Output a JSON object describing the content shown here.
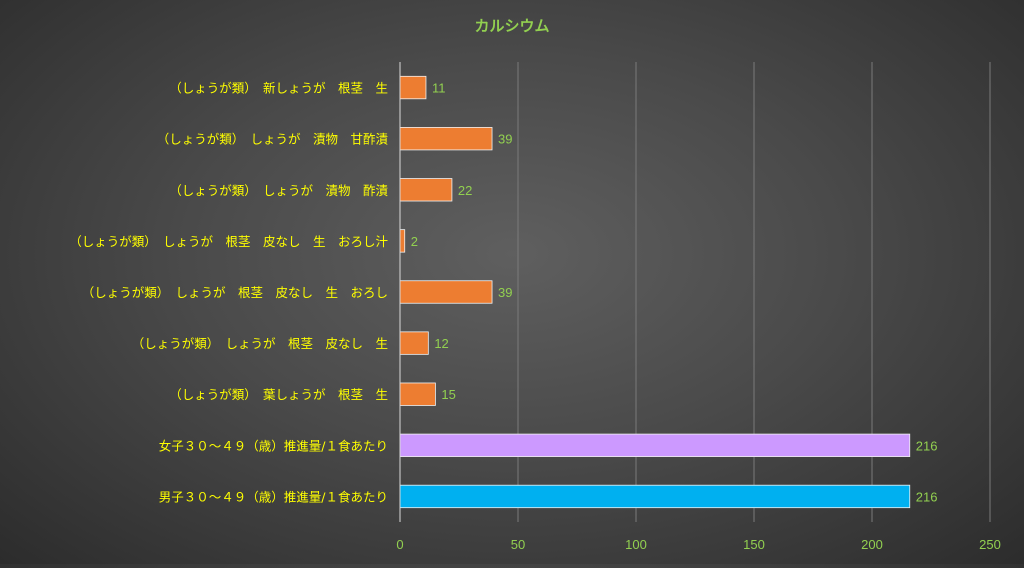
{
  "chart_data": {
    "type": "bar",
    "orientation": "horizontal",
    "title": "カルシウム",
    "categories": [
      "（しょうが類）　新しょうが　根茎　生",
      "（しょうが類）　しょうが　漬物　甘酢漬",
      "（しょうが類）　しょうが　漬物　酢漬",
      "（しょうが類）　しょうが　根茎　皮なし　生　おろし汁",
      "（しょうが類）　しょうが　根茎　皮なし　生　おろし",
      "（しょうが類）　しょうが　根茎　皮なし　生",
      "（しょうが類）　葉しょうが　根茎　生",
      "女子３０～４９（歳）推進量/１食あたり",
      "男子３０～４９（歳）推進量/１食あたり"
    ],
    "values": [
      11,
      39,
      22,
      2,
      39,
      12,
      15,
      216,
      216
    ],
    "data_labels": [
      "11",
      "39",
      "22",
      "2",
      "39",
      "12",
      "15",
      "216",
      "216"
    ],
    "bar_colors": [
      "#ed7d31",
      "#ed7d31",
      "#ed7d31",
      "#ed7d31",
      "#ed7d31",
      "#ed7d31",
      "#ed7d31",
      "#cc99ff",
      "#00b0f0"
    ],
    "xlim": [
      0,
      250
    ],
    "xticks": [
      0,
      50,
      100,
      150,
      200,
      250
    ],
    "xtick_labels": [
      "0",
      "50",
      "100",
      "150",
      "200",
      "250"
    ],
    "grid": true,
    "legend": "none",
    "colors": {
      "title": "#92d050",
      "category_label": "#ffff00",
      "data_label": "#92d050",
      "tick_label": "#92d050",
      "gridline": "#7a7a7a",
      "axis": "#d9d9d9",
      "bar_edge": "#f2f2f2"
    }
  }
}
